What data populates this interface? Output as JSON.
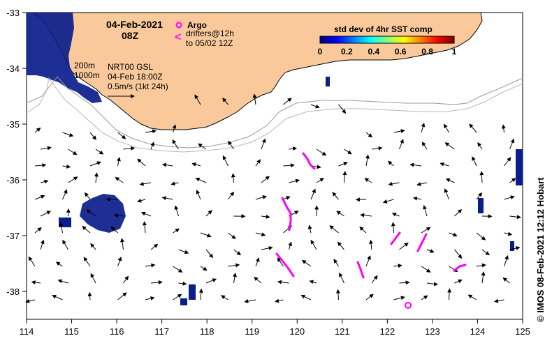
{
  "map": {
    "date": "04-Feb-2021",
    "time": "08Z",
    "depth_contours": [
      "200m",
      "1000m"
    ],
    "current_product": "NRT00 GSL",
    "current_time": "04-Feb 18:00Z",
    "vector_scale": "0.5m/s (1kt 24h)",
    "credit": "© IMOS 08-Feb-2021 12:12 Hobart",
    "lon_labels": [
      "114",
      "115",
      "116",
      "117",
      "118",
      "119",
      "120",
      "121",
      "122",
      "123",
      "124",
      "125"
    ],
    "lat_labels": [
      "-33",
      "-34",
      "-35",
      "-36",
      "-37",
      "-38"
    ],
    "land_color": "#f9c89b"
  },
  "legend": {
    "argo_label": "Argo",
    "drifter_label": "drifters@12h",
    "drifter_period": "to 05/02 12Z",
    "argo_color": "#ff00ff",
    "drifter_color": "#ff00ff"
  },
  "colorbar": {
    "title": "std dev of 4hr SST comp",
    "ticks": [
      "0",
      "0.2",
      "0.4",
      "0.6",
      "0.8",
      "1"
    ],
    "colors": [
      "#00007f",
      "#0000ff",
      "#007fff",
      "#00ffff",
      "#7fff7f",
      "#ffff00",
      "#ff7f00",
      "#ff0000",
      "#7f0000"
    ]
  }
}
